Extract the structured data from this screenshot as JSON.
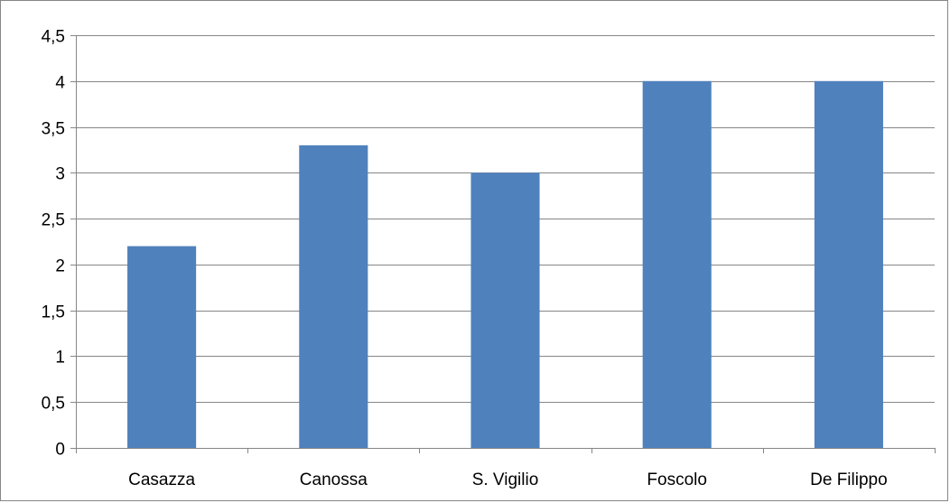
{
  "chart_data": {
    "type": "bar",
    "title": "",
    "xlabel": "",
    "ylabel": "",
    "categories": [
      "Casazza",
      "Canossa",
      "S. Vigilio",
      "Foscolo",
      "De Filippo"
    ],
    "values": [
      2.2,
      3.3,
      3.0,
      4.0,
      4.0
    ],
    "ylim": [
      0,
      4.5
    ],
    "y_ticks": [
      0,
      0.5,
      1,
      1.5,
      2,
      2.5,
      3,
      3.5,
      4,
      4.5
    ],
    "y_tick_labels": [
      "0",
      "0,5",
      "1",
      "1,5",
      "2",
      "2,5",
      "3",
      "3,5",
      "4",
      "4,5"
    ],
    "grid": true,
    "legend": "none",
    "bar_color": "#4F81BD",
    "grid_color": "#868686"
  }
}
